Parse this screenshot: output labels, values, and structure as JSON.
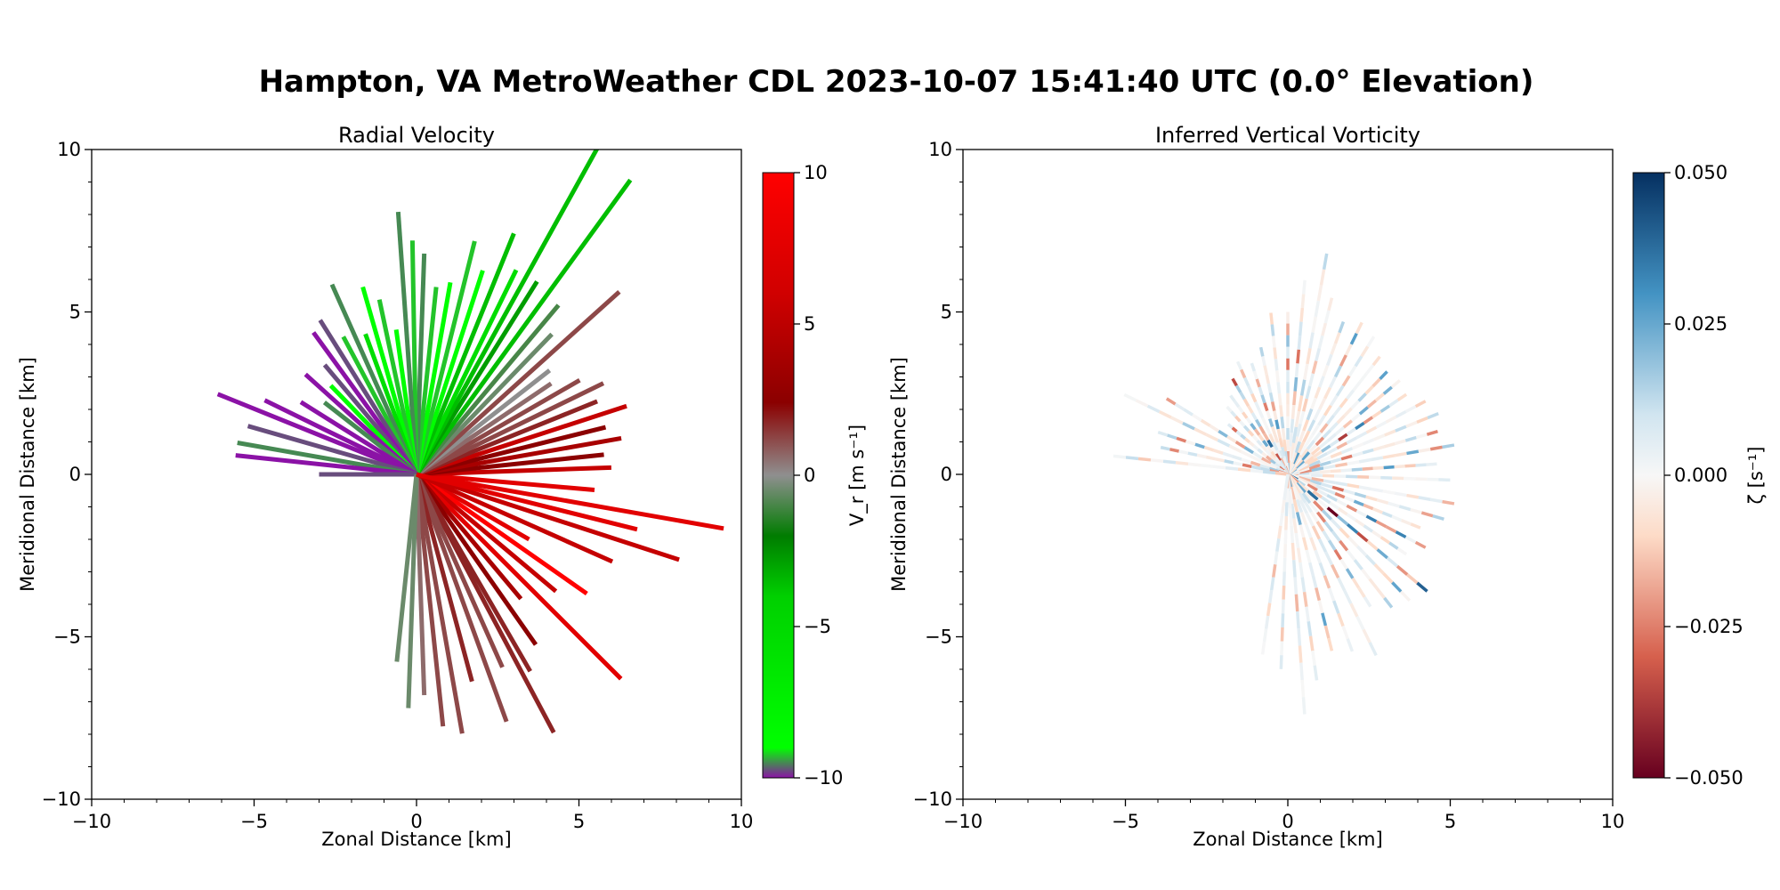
{
  "figure": {
    "title": "Hampton, VA MetroWeather CDL 2023-10-07 15:41:40 UTC (0.0° Elevation)"
  },
  "chart_data": [
    {
      "type": "radial-scatter",
      "title": "Radial Velocity",
      "xlabel": "Zonal Distance [km]",
      "ylabel": "Meridional Distance [km]",
      "xlim": [
        -10,
        10
      ],
      "ylim": [
        -10,
        10
      ],
      "xticks": [
        "−10",
        "−5",
        "0",
        "5",
        "10"
      ],
      "yticks": [
        "−10",
        "−5",
        "0",
        "5",
        "10"
      ],
      "colorbar": {
        "label": "V_r [m s⁻¹]",
        "range": [
          -10,
          10
        ],
        "ticks": [
          "10",
          "5",
          "0",
          "−5",
          "−10"
        ],
        "colors": [
          "#8b12a6",
          "#00ff00",
          "#007c00",
          "#8f8f8f",
          "#8b0000",
          "#ff0000"
        ]
      },
      "rays": [
        {
          "az": 120,
          "r": 4.0,
          "v": 9
        },
        {
          "az": 108,
          "r": 8.5,
          "v": 8
        },
        {
          "az": 100,
          "r": 9.6,
          "v": 9
        },
        {
          "az": 95,
          "r": 5.5,
          "v": 9
        },
        {
          "az": 88,
          "r": 6.0,
          "v": 8
        },
        {
          "az": 84,
          "r": 5.8,
          "v": 6
        },
        {
          "az": 80,
          "r": 6.4,
          "v": 7
        },
        {
          "az": 76,
          "r": 6.0,
          "v": 6
        },
        {
          "az": 72,
          "r": 6.8,
          "v": 8
        },
        {
          "az": 68,
          "r": 6.0,
          "v": 5
        },
        {
          "az": 64,
          "r": 6.4,
          "v": 4
        },
        {
          "az": 60,
          "r": 5.8,
          "v": 4
        },
        {
          "az": 56,
          "r": 5.0,
          "v": 3
        },
        {
          "az": 52,
          "r": 5.2,
          "v": 2
        },
        {
          "az": 48,
          "r": 8.4,
          "v": 4
        },
        {
          "az": 44,
          "r": 6.0,
          "v": 1
        },
        {
          "az": 40,
          "r": 6.8,
          "v": 0
        },
        {
          "az": 36,
          "r": 11.2,
          "v": -4
        },
        {
          "az": 32,
          "r": 7.0,
          "v": -3
        },
        {
          "az": 29,
          "r": 11.5,
          "v": -4
        },
        {
          "az": 26,
          "r": 7.0,
          "v": -5
        },
        {
          "az": 22,
          "r": 8.0,
          "v": -4
        },
        {
          "az": 18,
          "r": 6.6,
          "v": -6
        },
        {
          "az": 14,
          "r": 7.4,
          "v": -7
        },
        {
          "az": 10,
          "r": 6.0,
          "v": -6
        },
        {
          "az": 6,
          "r": 5.8,
          "v": -7
        },
        {
          "az": 2,
          "r": 6.8,
          "v": -8
        },
        {
          "az": -1,
          "r": 7.2,
          "v": -7
        },
        {
          "az": -4,
          "r": 8.1,
          "v": -8
        },
        {
          "az": -8,
          "r": 4.5,
          "v": -6
        },
        {
          "az": -12,
          "r": 5.5,
          "v": -7
        },
        {
          "az": -16,
          "r": 6.0,
          "v": -6
        },
        {
          "az": -20,
          "r": 4.6,
          "v": -5
        },
        {
          "az": -24,
          "r": 6.4,
          "v": -8
        },
        {
          "az": -28,
          "r": 4.8,
          "v": -7
        },
        {
          "az": -32,
          "r": 5.6,
          "v": -9
        },
        {
          "az": -36,
          "r": 5.4,
          "v": -10
        },
        {
          "az": -40,
          "r": 4.4,
          "v": -9
        },
        {
          "az": -44,
          "r": 3.8,
          "v": -6
        },
        {
          "az": -48,
          "r": 4.6,
          "v": -10
        },
        {
          "az": -52,
          "r": 3.6,
          "v": -8
        },
        {
          "az": -58,
          "r": 4.2,
          "v": -10
        },
        {
          "az": -64,
          "r": 5.2,
          "v": -10
        },
        {
          "az": -68,
          "r": 6.6,
          "v": -10
        },
        {
          "az": -74,
          "r": 5.4,
          "v": -9
        },
        {
          "az": -80,
          "r": 5.6,
          "v": -8
        },
        {
          "az": -84,
          "r": 5.6,
          "v": -10
        },
        {
          "az": -90,
          "r": 3.0,
          "v": -9
        },
        {
          "az": 125,
          "r": 6.4,
          "v": 10
        },
        {
          "az": 130,
          "r": 5.6,
          "v": 8
        },
        {
          "az": 135,
          "r": 8.9,
          "v": 9
        },
        {
          "az": 140,
          "r": 5.0,
          "v": 7
        },
        {
          "az": 145,
          "r": 6.4,
          "v": 6
        },
        {
          "az": 150,
          "r": 7.0,
          "v": 5
        },
        {
          "az": 152,
          "r": 9.0,
          "v": 5
        },
        {
          "az": 156,
          "r": 6.5,
          "v": 4
        },
        {
          "az": 160,
          "r": 8.1,
          "v": 4
        },
        {
          "az": 165,
          "r": 6.6,
          "v": 5
        },
        {
          "az": 170,
          "r": 8.1,
          "v": 4
        },
        {
          "az": 174,
          "r": 7.8,
          "v": 4
        },
        {
          "az": 178,
          "r": 6.8,
          "v": 3
        },
        {
          "az": 182,
          "r": 7.2,
          "v": 1
        },
        {
          "az": 186,
          "r": 5.8,
          "v": 1
        },
        {
          "az": 114,
          "r": 6.6,
          "v": 8
        },
        {
          "az": 104,
          "r": 7.0,
          "v": 9
        }
      ]
    },
    {
      "type": "radial-scatter",
      "title": "Inferred Vertical Vorticity",
      "xlabel": "Zonal Distance [km]",
      "ylabel": "Meridional Distance [km]",
      "xlim": [
        -10,
        10
      ],
      "ylim": [
        -10,
        10
      ],
      "xticks": [
        "−10",
        "−5",
        "0",
        "5",
        "10"
      ],
      "yticks": [
        "−10",
        "−5",
        "0",
        "5",
        "10"
      ],
      "colorbar": {
        "label": "ζ [s⁻¹]",
        "range": [
          -0.05,
          0.05
        ],
        "ticks": [
          "0.050",
          "0.025",
          "0.000",
          "−0.025",
          "−0.050"
        ],
        "colors": [
          "#67001f",
          "#d6604d",
          "#fddbc7",
          "#f7f7f7",
          "#d1e5f0",
          "#4393c3",
          "#053061"
        ]
      },
      "rays": [
        {
          "az": 100,
          "r": 5.2,
          "z": 0.01
        },
        {
          "az": 92,
          "r": 5.0,
          "z": -0.01
        },
        {
          "az": 86,
          "r": 4.6,
          "z": 0.02
        },
        {
          "az": 80,
          "r": 5.2,
          "z": -0.02
        },
        {
          "az": 74,
          "r": 4.8,
          "z": 0.02
        },
        {
          "az": 68,
          "r": 5.0,
          "z": 0.01
        },
        {
          "az": 62,
          "r": 4.8,
          "z": -0.01
        },
        {
          "az": 56,
          "r": 4.4,
          "z": 0.03
        },
        {
          "az": 50,
          "r": 4.5,
          "z": -0.02
        },
        {
          "az": 44,
          "r": 4.4,
          "z": 0.02
        },
        {
          "az": 38,
          "r": 4.6,
          "z": -0.01
        },
        {
          "az": 32,
          "r": 5.0,
          "z": 0.01
        },
        {
          "az": 26,
          "r": 5.2,
          "z": -0.02
        },
        {
          "az": 20,
          "r": 5.0,
          "z": 0.01
        },
        {
          "az": 14,
          "r": 5.6,
          "z": -0.01
        },
        {
          "az": 10,
          "r": 6.9,
          "z": -0.01
        },
        {
          "az": 5,
          "r": 6.0,
          "z": 0.02
        },
        {
          "az": 0,
          "r": 5.0,
          "z": -0.02
        },
        {
          "az": -6,
          "r": 5.0,
          "z": 0.01
        },
        {
          "az": -12,
          "r": 4.0,
          "z": -0.02
        },
        {
          "az": -18,
          "r": 3.6,
          "z": 0.02
        },
        {
          "az": -24,
          "r": 3.8,
          "z": -0.01
        },
        {
          "az": -30,
          "r": 3.4,
          "z": 0.03
        },
        {
          "az": -36,
          "r": 3.0,
          "z": -0.02
        },
        {
          "az": -42,
          "r": 2.8,
          "z": 0.01
        },
        {
          "az": -50,
          "r": 2.4,
          "z": -0.02
        },
        {
          "az": -58,
          "r": 4.4,
          "z": 0.02
        },
        {
          "az": -64,
          "r": 5.6,
          "z": -0.01
        },
        {
          "az": -72,
          "r": 4.2,
          "z": 0.02
        },
        {
          "az": -78,
          "r": 4.0,
          "z": -0.02
        },
        {
          "az": -84,
          "r": 5.4,
          "z": -0.01
        },
        {
          "az": 106,
          "r": 5.0,
          "z": 0.02
        },
        {
          "az": 112,
          "r": 4.4,
          "z": -0.02
        },
        {
          "az": 118,
          "r": 4.8,
          "z": 0.03
        },
        {
          "az": 124,
          "r": 4.4,
          "z": -0.01
        },
        {
          "az": 130,
          "r": 5.6,
          "z": 0.04
        },
        {
          "az": 136,
          "r": 5.4,
          "z": 0.02
        },
        {
          "az": 142,
          "r": 5.2,
          "z": -0.02
        },
        {
          "az": 148,
          "r": 4.8,
          "z": 0.02
        },
        {
          "az": 154,
          "r": 6.2,
          "z": 0.01
        },
        {
          "az": 160,
          "r": 5.8,
          "z": -0.01
        },
        {
          "az": 166,
          "r": 5.6,
          "z": 0.02
        },
        {
          "az": 172,
          "r": 6.4,
          "z": 0.01
        },
        {
          "az": 176,
          "r": 7.4,
          "z": 0.01
        },
        {
          "az": 182,
          "r": 6.0,
          "z": -0.01
        },
        {
          "az": 188,
          "r": 5.6,
          "z": -0.01
        }
      ]
    }
  ]
}
